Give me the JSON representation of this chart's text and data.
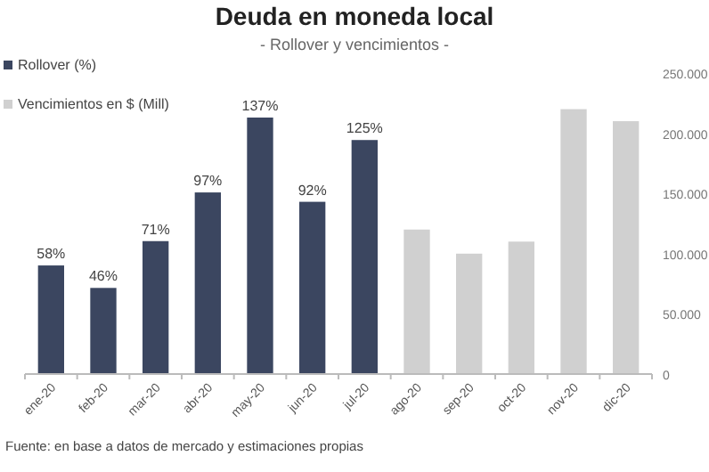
{
  "chart_data": {
    "type": "bar",
    "title": "Deuda en moneda local",
    "subtitle": "- Rollover y vencimientos -",
    "categories": [
      "ene-20",
      "feb-20",
      "mar-20",
      "abr-20",
      "may-20",
      "jun-20",
      "jul-20",
      "ago-20",
      "sep-20",
      "oct-20",
      "nov-20",
      "dic-20"
    ],
    "series": [
      {
        "name": "Rollover (%)",
        "color": "#3b4660",
        "axis": "y2",
        "values": [
          58,
          46,
          71,
          97,
          137,
          92,
          125,
          null,
          null,
          null,
          null,
          null
        ],
        "value_labels": [
          "58%",
          "46%",
          "71%",
          "97%",
          "137%",
          "92%",
          "125%",
          null,
          null,
          null,
          null,
          null
        ]
      },
      {
        "name": "Vencimientos en $ (Mill)",
        "color": "#d0d0d0",
        "values": [
          null,
          null,
          null,
          null,
          null,
          null,
          null,
          120000,
          100000,
          110000,
          220000,
          210000
        ]
      }
    ],
    "ylim": [
      0,
      250000
    ],
    "yticks": [
      {
        "value": 0,
        "label": "0"
      },
      {
        "value": 50000,
        "label": "50.000"
      },
      {
        "value": 100000,
        "label": "100.000"
      },
      {
        "value": 150000,
        "label": "150.000"
      },
      {
        "value": 200000,
        "label": "200.000"
      },
      {
        "value": 250000,
        "label": "250.000"
      }
    ],
    "grid": false,
    "legend": "top left",
    "annotations": [
      "Fuente: en base a datos de mercado y estimaciones propias"
    ]
  }
}
